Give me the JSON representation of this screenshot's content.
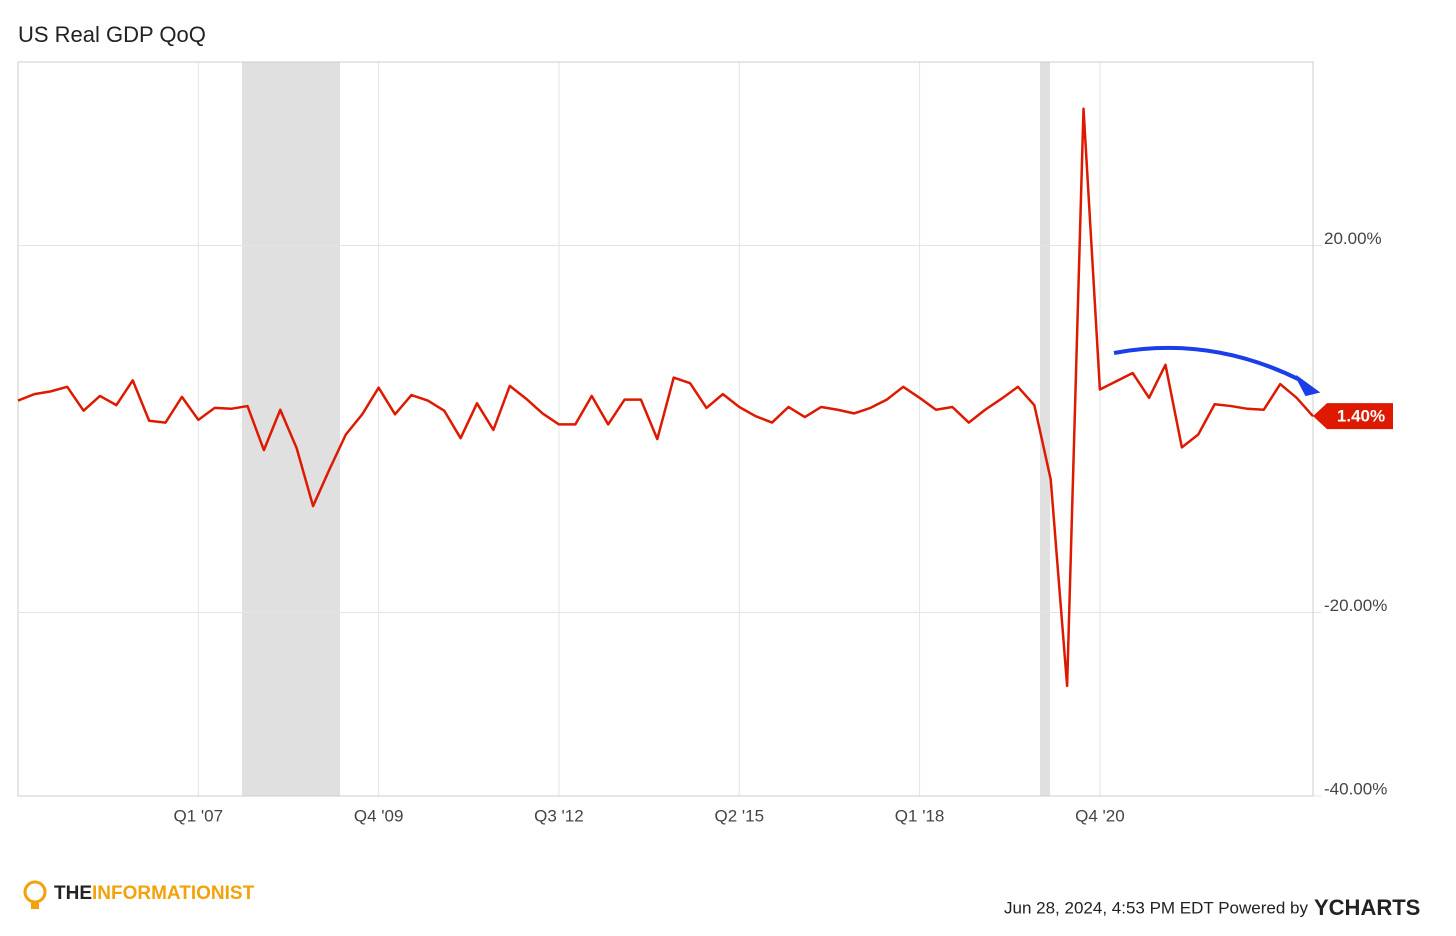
{
  "chart_data": {
    "type": "line",
    "title": "US Real GDP QoQ",
    "color": "#dd1a00",
    "categories": [
      null,
      null,
      null,
      null,
      null,
      null,
      null,
      null,
      null,
      null,
      null,
      "Q1 '07",
      null,
      null,
      null,
      null,
      null,
      null,
      null,
      null,
      null,
      null,
      "Q4 '09",
      null,
      null,
      null,
      null,
      null,
      null,
      null,
      null,
      null,
      null,
      "Q3 '12",
      null,
      null,
      null,
      null,
      null,
      null,
      null,
      null,
      null,
      null,
      "Q2 '15",
      null,
      null,
      null,
      null,
      null,
      null,
      null,
      null,
      null,
      null,
      "Q1 '18",
      null,
      null,
      null,
      null,
      null,
      null,
      null,
      null,
      null,
      null,
      "Q4 '20",
      null,
      null,
      null,
      null,
      null,
      null,
      null,
      null,
      null,
      null,
      null,
      null,
      null
    ],
    "values": [
      3.1,
      3.8,
      4.1,
      4.6,
      2.0,
      3.6,
      2.6,
      5.3,
      0.9,
      0.7,
      3.5,
      1.0,
      2.3,
      2.2,
      2.5,
      -2.3,
      2.1,
      -2.1,
      -8.4,
      -4.4,
      -0.6,
      1.6,
      4.5,
      1.6,
      3.7,
      3.1,
      2.0,
      -1.0,
      2.8,
      -0.1,
      4.7,
      3.3,
      1.7,
      0.5,
      0.5,
      3.6,
      0.5,
      3.2,
      3.2,
      -1.1,
      5.6,
      5.0,
      2.3,
      3.8,
      2.4,
      1.4,
      0.7,
      2.4,
      1.3,
      2.4,
      2.1,
      1.7,
      2.3,
      3.2,
      4.6,
      3.4,
      2.1,
      2.4,
      0.7,
      2.1,
      3.3,
      4.6,
      2.6,
      -5.5,
      -28.0,
      34.9,
      4.3,
      5.2,
      6.1,
      3.4,
      7.0,
      -2.0,
      -0.6,
      2.7,
      2.5,
      2.2,
      2.1,
      4.9,
      3.4,
      1.4
    ],
    "value_labels": [
      null,
      null,
      null,
      null,
      null,
      null,
      null,
      null,
      null,
      null,
      null,
      null,
      null,
      null,
      null,
      null,
      null,
      null,
      null,
      null,
      null,
      null,
      null,
      null,
      null,
      null,
      null,
      null,
      null,
      null,
      null,
      null,
      null,
      null,
      null,
      null,
      null,
      null,
      null,
      null,
      null,
      null,
      null,
      null,
      null,
      null,
      null,
      null,
      null,
      null,
      null,
      null,
      null,
      null,
      null,
      null,
      null,
      null,
      null,
      null,
      null,
      null,
      null,
      null,
      null,
      null,
      null,
      null,
      null,
      null,
      null,
      null,
      null,
      null,
      null,
      null,
      null,
      null,
      null,
      "1.40%"
    ],
    "ylim": [
      -40,
      40
    ],
    "yticks": [
      {
        "value": -40,
        "label": "-40.00%"
      },
      {
        "value": -20,
        "label": "-20.00%"
      },
      {
        "value": 20,
        "label": "20.00%"
      }
    ],
    "grid": true,
    "brand": {
      "prefix": "THE",
      "name": "INFORMATIONIST"
    },
    "footer": {
      "timestamp": "Jun 28, 2024, 4:53 PM EDT Powered by",
      "provider": "YCHARTS"
    }
  }
}
